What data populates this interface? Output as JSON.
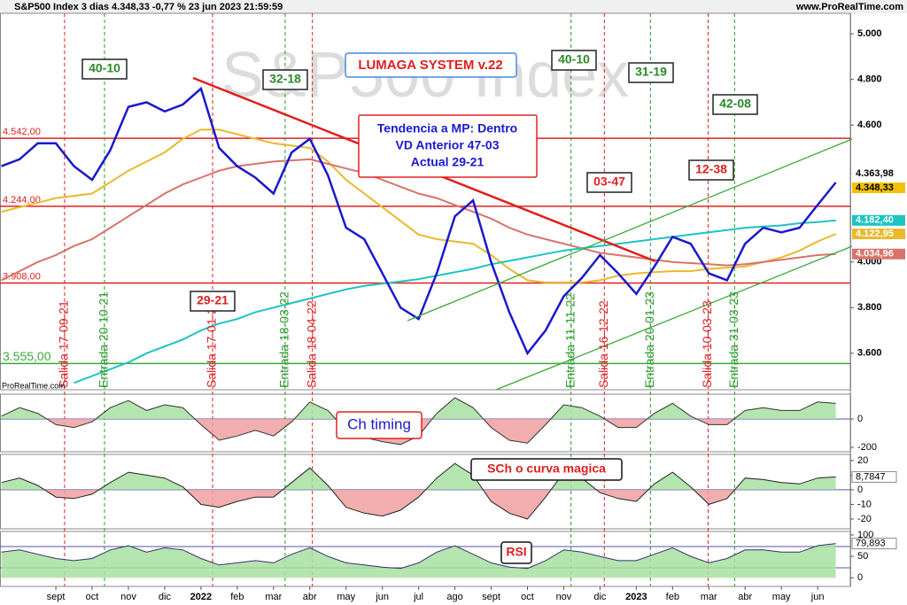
{
  "chart_data": [
    {
      "type": "line",
      "title": "S&P500 Index 3 dias 4.348,33 -0,77 % 23 jun 2023 21:59:59",
      "source": "www.ProRealTime.com",
      "brand": "ProRealTime.com",
      "watermark": "S&P500 Index",
      "system_title": "LUMAGA SYSTEM v.22",
      "trend_box": [
        "Tendencia a MP: Dentro",
        "VD Anterior 47-03",
        "Actual 29-21"
      ],
      "scores": [
        "40-10",
        "32-18",
        "40-10",
        "31-19",
        "42-08",
        "29-21",
        "03-47",
        "12-38"
      ],
      "x": [
        -0.5,
        0,
        0.5,
        1,
        1.5,
        2,
        2.5,
        3,
        3.5,
        4,
        4.5,
        5,
        5.5,
        6,
        6.5,
        7,
        7.5,
        8,
        8.5,
        9,
        9.5,
        10,
        10.5,
        11,
        11.5,
        12,
        12.5,
        13,
        13.5,
        14,
        14.5,
        15,
        15.5,
        16,
        16.5,
        17,
        17.5,
        18,
        18.5,
        19,
        19.5,
        20,
        20.5,
        21,
        21.5,
        22,
        22.5
      ],
      "xlim": [
        -0.54,
        22.9
      ],
      "xticks": [
        {
          "value": 1,
          "label": "sept"
        },
        {
          "value": 2,
          "label": "oct"
        },
        {
          "value": 3,
          "label": "nov"
        },
        {
          "value": 4,
          "label": "dic"
        },
        {
          "value": 5,
          "label": "2022"
        },
        {
          "value": 6,
          "label": "feb"
        },
        {
          "value": 7,
          "label": "mar"
        },
        {
          "value": 8,
          "label": "abr"
        },
        {
          "value": 9,
          "label": "may"
        },
        {
          "value": 10,
          "label": "jun"
        },
        {
          "value": 11,
          "label": "jul"
        },
        {
          "value": 12,
          "label": "ago"
        },
        {
          "value": 13,
          "label": "sept"
        },
        {
          "value": 14,
          "label": "oct"
        },
        {
          "value": 15,
          "label": "nov"
        },
        {
          "value": 16,
          "label": "dic"
        },
        {
          "value": 17,
          "label": "2023"
        },
        {
          "value": 18,
          "label": "feb"
        },
        {
          "value": 19,
          "label": "mar"
        },
        {
          "value": 20,
          "label": "abr"
        },
        {
          "value": 21,
          "label": "may"
        },
        {
          "value": 22,
          "label": "jun"
        }
      ],
      "ylim": [
        3440,
        5090
      ],
      "yticks": [
        {
          "value": 5000,
          "label": "5.000"
        },
        {
          "value": 4800,
          "label": "4.800"
        },
        {
          "value": 4600,
          "label": "4.600"
        },
        {
          "value": 4000,
          "label": "4.000"
        },
        {
          "value": 3800,
          "label": "3.800"
        },
        {
          "value": 3600,
          "label": "3.600"
        }
      ],
      "series": [
        {
          "color": "#e8ba2c",
          "values": [
            4220,
            4240,
            4260,
            4280,
            4290,
            4300,
            4350,
            4400,
            4440,
            4480,
            4540,
            4580,
            4580,
            4560,
            4540,
            4520,
            4510,
            4500,
            4440,
            4360,
            4300,
            4240,
            4180,
            4120,
            4100,
            4090,
            4080,
            4030,
            3970,
            3920,
            3910,
            3910,
            3910,
            3920,
            3940,
            3950,
            3955,
            3960,
            3960,
            3970,
            3975,
            3980,
            4000,
            4020,
            4050,
            4090,
            4122.95
          ]
        },
        {
          "color": "#d9736a",
          "values": [
            3920,
            3960,
            4000,
            4030,
            4070,
            4100,
            4150,
            4200,
            4250,
            4300,
            4340,
            4370,
            4400,
            4420,
            4430,
            4440,
            4445,
            4450,
            4430,
            4410,
            4390,
            4360,
            4330,
            4300,
            4280,
            4250,
            4220,
            4190,
            4150,
            4120,
            4100,
            4080,
            4060,
            4040,
            4030,
            4020,
            4010,
            4000,
            3995,
            3990,
            3985,
            3990,
            4000,
            4010,
            4020,
            4030,
            4034.96
          ]
        },
        {
          "color": "#1cc4c4",
          "values": [
            null,
            null,
            null,
            null,
            3470,
            3500,
            3530,
            3560,
            3600,
            3630,
            3660,
            3700,
            3730,
            3750,
            3780,
            3800,
            3820,
            3840,
            3860,
            3880,
            3895,
            3905,
            3915,
            3925,
            3940,
            3955,
            3970,
            3990,
            4005,
            4020,
            4035,
            4050,
            4060,
            4070,
            4080,
            4090,
            4100,
            4110,
            4120,
            4130,
            4140,
            4150,
            4155,
            4160,
            4170,
            4175,
            4182.4
          ]
        },
        {
          "color": "#1a1acc",
          "values": [
            4420,
            4450,
            4520,
            4520,
            4420,
            4360,
            4490,
            4680,
            4700,
            4660,
            4690,
            4760,
            4500,
            4420,
            4370,
            4300,
            4480,
            4540,
            4380,
            4150,
            4100,
            3950,
            3800,
            3750,
            3950,
            4200,
            4270,
            4000,
            3780,
            3600,
            3700,
            3850,
            3930,
            4030,
            3950,
            3860,
            3980,
            4110,
            4080,
            3950,
            3920,
            4080,
            4150,
            4130,
            4150,
            4250,
            4348.33
          ]
        }
      ],
      "levels": [
        {
          "value": 4542,
          "label": "4.542,00",
          "color": "#e02020"
        },
        {
          "value": 4244,
          "label": "4.244,00",
          "color": "#e02020"
        },
        {
          "value": 3908,
          "label": "3.908,00",
          "color": "#e02020"
        },
        {
          "value": 3555,
          "label": "3.555,00",
          "color": "#3aaa3a"
        }
      ],
      "price_labels": [
        {
          "value": 4363.98,
          "label": "4.363,98",
          "color": "#ffffff"
        },
        {
          "value": 4348.33,
          "label": "4.348,33",
          "color": "#f2c200"
        },
        {
          "value": 4182.4,
          "label": "4.182,40",
          "color": "#1cc4c4"
        },
        {
          "value": 4122.95,
          "label": "4.122,95",
          "color": "#e8ba2c"
        },
        {
          "value": 4034.96,
          "label": "4.034,96",
          "color": "#d9736a"
        }
      ],
      "signals": [
        {
          "x": 1.24,
          "label": "Salida 17-09-21",
          "color": "#e02020"
        },
        {
          "x": 2.34,
          "label": "Entrada 20-10-21",
          "color": "#2a9a2a"
        },
        {
          "x": 5.32,
          "label": "Salida 17-01-22",
          "color": "#e02020"
        },
        {
          "x": 7.32,
          "label": "Entrada 18-03-22",
          "color": "#2a9a2a"
        },
        {
          "x": 8.07,
          "label": "Salida 18-04-22",
          "color": "#e02020"
        },
        {
          "x": 15.2,
          "label": "Entrada 11-11-22",
          "color": "#2a9a2a"
        },
        {
          "x": 16.12,
          "label": "Salida 16-12-22",
          "color": "#e02020"
        },
        {
          "x": 17.39,
          "label": "Entrada 20-01-23",
          "color": "#2a9a2a"
        },
        {
          "x": 18.98,
          "label": "Salida 10-03-23",
          "color": "#e02020"
        },
        {
          "x": 19.71,
          "label": "Entrada 31-03-23",
          "color": "#2a9a2a"
        }
      ]
    },
    {
      "type": "area",
      "title": "Ch timing",
      "color": "#333333",
      "ylim": [
        -231,
        175
      ],
      "yticks": [
        0,
        -200
      ],
      "values": [
        20,
        80,
        40,
        -40,
        -60,
        -20,
        80,
        130,
        60,
        100,
        80,
        -40,
        -150,
        -120,
        -80,
        -120,
        -20,
        120,
        60,
        -80,
        -130,
        -160,
        -180,
        -120,
        40,
        150,
        80,
        -60,
        -150,
        -170,
        -40,
        100,
        80,
        20,
        -60,
        -60,
        40,
        110,
        20,
        -40,
        -40,
        60,
        80,
        60,
        60,
        120,
        110
      ]
    },
    {
      "type": "area",
      "title": "SCh o curva magica",
      "color": "#222222",
      "ylim": [
        -26.7,
        24.2
      ],
      "yticks": [
        20,
        10,
        0,
        -10,
        -20
      ],
      "last_label": "8,7847",
      "values": [
        5,
        8,
        3,
        -5,
        -6,
        -3,
        5,
        12,
        10,
        8,
        2,
        -10,
        -12,
        -8,
        -5,
        -5,
        5,
        15,
        3,
        -12,
        -16,
        -18,
        -14,
        -5,
        8,
        18,
        10,
        -8,
        -16,
        -20,
        -5,
        12,
        8,
        -2,
        -6,
        -8,
        4,
        12,
        2,
        -10,
        -6,
        8,
        7,
        5,
        4,
        8,
        8.7847
      ]
    },
    {
      "type": "oscillator",
      "title": "RSI",
      "color": "#333366",
      "ylim": [
        -20,
        108
      ],
      "yticks": [
        100,
        50,
        0
      ],
      "last_label": "79,893",
      "values": [
        60,
        65,
        55,
        45,
        40,
        45,
        65,
        75,
        60,
        70,
        65,
        45,
        30,
        35,
        40,
        35,
        55,
        70,
        50,
        35,
        30,
        25,
        22,
        35,
        60,
        75,
        55,
        35,
        25,
        22,
        40,
        65,
        60,
        50,
        40,
        40,
        55,
        70,
        50,
        35,
        45,
        65,
        65,
        60,
        60,
        75,
        79.893
      ]
    }
  ]
}
